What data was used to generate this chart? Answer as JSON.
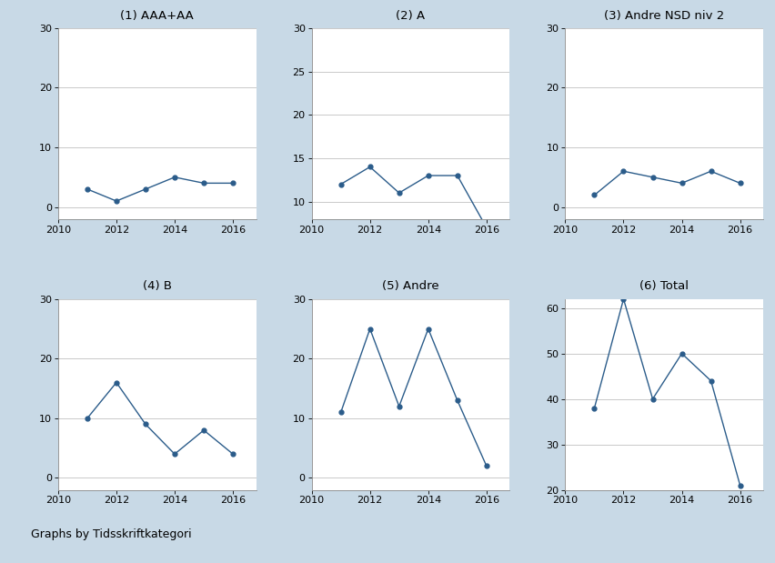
{
  "panels": [
    {
      "title": "(1) AAA+AA",
      "years": [
        2011,
        2012,
        2013,
        2014,
        2015,
        2016
      ],
      "values": [
        3,
        1,
        3,
        5,
        4,
        4
      ],
      "ylim": [
        -2,
        30
      ],
      "yticks": [
        0,
        10,
        20,
        30
      ]
    },
    {
      "title": "(2) A",
      "years": [
        2011,
        2012,
        2013,
        2014,
        2015,
        2016
      ],
      "values": [
        12,
        14,
        11,
        13,
        13,
        7
      ],
      "ylim": [
        8,
        30
      ],
      "yticks": [
        10,
        15,
        20,
        25,
        30
      ]
    },
    {
      "title": "(3) Andre NSD niv 2",
      "years": [
        2011,
        2012,
        2013,
        2014,
        2015,
        2016
      ],
      "values": [
        2,
        6,
        5,
        4,
        6,
        4
      ],
      "ylim": [
        -2,
        30
      ],
      "yticks": [
        0,
        10,
        20,
        30
      ]
    },
    {
      "title": "(4) B",
      "years": [
        2011,
        2012,
        2013,
        2014,
        2015,
        2016
      ],
      "values": [
        10,
        16,
        9,
        4,
        8,
        4
      ],
      "ylim": [
        -2,
        30
      ],
      "yticks": [
        0,
        10,
        20,
        30
      ]
    },
    {
      "title": "(5) Andre",
      "years": [
        2011,
        2012,
        2013,
        2014,
        2015,
        2016
      ],
      "values": [
        11,
        25,
        12,
        25,
        13,
        2
      ],
      "ylim": [
        -2,
        30
      ],
      "yticks": [
        0,
        10,
        20,
        30
      ]
    },
    {
      "title": "(6) Total",
      "years": [
        2011,
        2012,
        2013,
        2014,
        2015,
        2016
      ],
      "values": [
        38,
        62,
        40,
        50,
        44,
        21
      ],
      "ylim": [
        20,
        62
      ],
      "yticks": [
        20,
        30,
        40,
        50,
        60
      ]
    }
  ],
  "line_color": "#2b5c8a",
  "marker": "o",
  "marker_size": 3.5,
  "line_width": 1.0,
  "background_color": "#c8d9e6",
  "panel_bg_color": "#ffffff",
  "title_bg_color": "#c8d9e6",
  "footer_text": "Graphs by Tidsskriftkategori",
  "xticks": [
    2010,
    2012,
    2014,
    2016
  ],
  "xlim": [
    2010.0,
    2016.8
  ]
}
